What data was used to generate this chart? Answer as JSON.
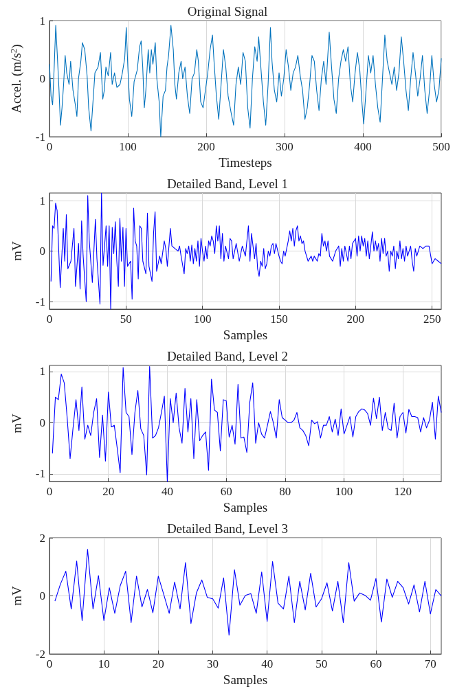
{
  "chart_data": [
    {
      "type": "line",
      "title": "Original Signal",
      "xlabel": "Timesteps",
      "ylabel": "Accel. (m/s$^{2}$)",
      "xlim": [
        0,
        500
      ],
      "xticks": [
        0,
        100,
        200,
        300,
        400,
        500
      ],
      "ylim": [
        -1,
        1
      ],
      "yticks": [
        -1,
        0,
        1
      ],
      "grid": true,
      "marker": "none",
      "series": [
        {
          "color": "#0072bd",
          "x": [
            0,
            2,
            4,
            6,
            8,
            10,
            12,
            14,
            16,
            18,
            20,
            22,
            25,
            27,
            30,
            33,
            35,
            37,
            40,
            42,
            45,
            48,
            50,
            53,
            55,
            58,
            62,
            65,
            68,
            70,
            72,
            75,
            78,
            80,
            83,
            86,
            90,
            93,
            96,
            98,
            100,
            102,
            105,
            108,
            112,
            115,
            117,
            119,
            121,
            123,
            126,
            128,
            130,
            132,
            135,
            137,
            140,
            142,
            145,
            148,
            150,
            152,
            155,
            158,
            160,
            162,
            165,
            168,
            170,
            173,
            176,
            179,
            182,
            185,
            188,
            190,
            193,
            196,
            199,
            202,
            205,
            208,
            210,
            213,
            216,
            219,
            222,
            225,
            228,
            232,
            235,
            238,
            241,
            244,
            247,
            250,
            253,
            256,
            259,
            262,
            265,
            267,
            270,
            273,
            276,
            279,
            282,
            284,
            287,
            290,
            293,
            296,
            299,
            302,
            305,
            308,
            311,
            314,
            317,
            320,
            323,
            326,
            329,
            332,
            335,
            338,
            341,
            344,
            347,
            350,
            353,
            357,
            360,
            363,
            366,
            369,
            372,
            375,
            378,
            381,
            384,
            387,
            390,
            393,
            396,
            399,
            401,
            404,
            407,
            410,
            413,
            416,
            419,
            422,
            425,
            428,
            431,
            434,
            437,
            440,
            443,
            446,
            449,
            452,
            455,
            458,
            461,
            464,
            467,
            470,
            473,
            476,
            479,
            482,
            485,
            488,
            491,
            494,
            497,
            500
          ],
          "values": [
            0.25,
            -0.3,
            -0.45,
            0.2,
            0.92,
            0.4,
            -0.15,
            -0.8,
            -0.5,
            -0.1,
            0.4,
            0.1,
            -0.1,
            0.3,
            -0.2,
            -0.45,
            -0.65,
            0.0,
            0.3,
            0.62,
            0.5,
            0.05,
            -0.5,
            -0.9,
            -0.5,
            0.1,
            0.2,
            0.45,
            -0.35,
            -0.2,
            0.2,
            0.05,
            0.45,
            -0.1,
            0.1,
            -0.15,
            -0.1,
            0.1,
            0.35,
            0.88,
            0.2,
            -0.35,
            -0.65,
            -0.05,
            0.15,
            0.55,
            0.65,
            0.2,
            -0.5,
            -0.2,
            0.5,
            0.1,
            0.5,
            0.25,
            0.62,
            0.0,
            -0.4,
            -1.0,
            -0.3,
            -0.2,
            0.2,
            0.4,
            0.92,
            0.5,
            -0.1,
            -0.35,
            0.1,
            0.3,
            0.0,
            0.2,
            -0.3,
            -0.6,
            0.0,
            0.1,
            0.5,
            0.3,
            -0.4,
            -0.5,
            -0.2,
            0.1,
            0.5,
            0.75,
            0.3,
            -0.3,
            -0.7,
            -0.1,
            0.5,
            0.2,
            -0.3,
            -0.6,
            -0.8,
            -0.1,
            0.2,
            -0.1,
            0.45,
            0.3,
            -0.5,
            -0.85,
            0.0,
            0.55,
            0.3,
            0.72,
            0.15,
            -0.4,
            -0.8,
            -0.1,
            0.88,
            0.3,
            -0.2,
            -0.4,
            0.1,
            -0.3,
            0.0,
            0.5,
            0.2,
            -0.2,
            0.1,
            0.2,
            0.4,
            0.05,
            -0.2,
            -0.7,
            -0.5,
            -0.1,
            0.4,
            0.3,
            -0.2,
            -0.55,
            0.0,
            0.3,
            -0.1,
            0.8,
            0.2,
            -0.35,
            -0.6,
            0.0,
            0.3,
            0.5,
            0.3,
            0.55,
            -0.1,
            -0.4,
            0.1,
            0.45,
            0.15,
            -0.45,
            -0.78,
            -0.2,
            0.4,
            0.1,
            0.4,
            -0.1,
            -0.5,
            -0.75,
            0.0,
            0.75,
            0.3,
            0.1,
            -0.1,
            0.2,
            -0.2,
            0.1,
            0.72,
            0.3,
            -0.2,
            -0.55,
            0.0,
            0.45,
            0.1,
            -0.3,
            0.0,
            0.4,
            -0.2,
            -0.6,
            -0.2,
            0.4,
            -0.1,
            -0.4,
            -0.2,
            0.35
          ]
        }
      ]
    },
    {
      "type": "line",
      "title": "Detailed Band, Level 1",
      "xlabel": "Samples",
      "ylabel": "mV",
      "xlim": [
        0,
        256
      ],
      "xticks": [
        0,
        50,
        100,
        150,
        200,
        250
      ],
      "ylim": [
        -1.15,
        1.15
      ],
      "yticks": [
        -1,
        0,
        1
      ],
      "grid": true,
      "marker": "none",
      "series": [
        {
          "color": "#0000ff",
          "x": [
            1,
            2,
            3,
            4,
            5,
            7,
            9,
            10,
            11,
            12,
            14,
            16,
            17,
            19,
            20,
            21,
            22,
            24,
            25,
            26,
            28,
            30,
            31,
            33,
            34,
            35,
            37,
            38,
            39,
            40,
            41,
            42,
            43,
            44,
            45,
            46,
            47,
            48,
            49,
            50,
            51,
            53,
            54,
            55,
            56,
            57,
            58,
            59,
            60,
            61,
            63,
            64,
            65,
            67,
            68,
            69,
            70,
            72,
            73,
            75,
            76,
            77,
            79,
            80,
            82,
            84,
            85,
            86,
            88,
            89,
            90,
            91,
            92,
            93,
            94,
            95,
            96,
            97,
            98,
            99,
            100,
            101,
            102,
            103,
            104,
            105,
            106,
            107,
            108,
            109,
            110,
            111,
            112,
            113,
            114,
            115,
            117,
            118,
            119,
            120,
            122,
            124,
            126,
            128,
            130,
            131,
            132,
            134,
            135,
            136,
            137,
            138,
            139,
            140,
            141,
            142,
            143,
            144,
            145,
            146,
            147,
            148,
            150,
            151,
            152,
            153,
            154,
            156,
            157,
            158,
            159,
            160,
            161,
            162,
            163,
            164,
            165,
            166,
            167,
            168,
            169,
            171,
            172,
            173,
            175,
            176,
            177,
            178,
            179,
            180,
            181,
            182,
            183,
            185,
            187,
            189,
            190,
            191,
            192,
            193,
            195,
            196,
            197,
            198,
            200,
            201,
            202,
            203,
            204,
            205,
            206,
            207,
            208,
            209,
            211,
            212,
            213,
            214,
            215,
            216,
            217,
            218,
            219,
            220,
            221,
            222,
            223,
            224,
            225,
            226,
            227,
            228,
            229,
            230,
            231,
            232,
            233,
            234,
            235,
            236,
            237,
            238,
            239,
            240,
            242,
            244,
            246,
            248,
            250,
            252,
            254,
            256
          ],
          "values": [
            -0.6,
            0.5,
            0.45,
            0.95,
            0.8,
            -0.72,
            0.45,
            -0.2,
            0.72,
            -0.35,
            -0.2,
            0.45,
            -0.7,
            0.15,
            -0.75,
            0.6,
            -0.1,
            -1.0,
            1.1,
            0.2,
            -0.62,
            0.63,
            -0.15,
            -1.05,
            1.15,
            -0.28,
            0.5,
            -0.3,
            0.5,
            -1.15,
            0.47,
            -0.05,
            0.58,
            -0.2,
            -0.7,
            0.65,
            -0.2,
            0.47,
            -0.7,
            0.45,
            -0.3,
            -0.2,
            -0.95,
            0.85,
            0.2,
            0.1,
            -0.55,
            0.5,
            0.45,
            -0.2,
            -0.45,
            0.75,
            -0.3,
            -0.6,
            0.35,
            0.78,
            -0.4,
            -0.1,
            -0.25,
            0.2,
            0.05,
            -0.3,
            0.45,
            0.1,
            0.05,
            0.0,
            0.1,
            -0.1,
            -0.45,
            0.05,
            -0.05,
            0.1,
            -0.2,
            0.12,
            -0.25,
            0.05,
            -0.2,
            0.2,
            -0.3,
            0.25,
            0.0,
            -0.2,
            0.1,
            -0.15,
            0.2,
            0.1,
            0.3,
            0.2,
            -0.05,
            0.5,
            0.2,
            0.5,
            -0.15,
            0.35,
            -0.2,
            0.1,
            -0.15,
            0.25,
            0.2,
            -0.15,
            0.15,
            -0.2,
            0.1,
            -0.1,
            0.5,
            -0.2,
            0.35,
            -0.15,
            0.15,
            -0.35,
            -0.5,
            -0.2,
            -0.3,
            0.05,
            -0.35,
            -0.25,
            0.0,
            -0.1,
            0.1,
            0.15,
            -0.05,
            0.15,
            -0.1,
            -0.2,
            -0.25,
            0.0,
            -0.1,
            0.2,
            0.4,
            0.2,
            0.45,
            0.1,
            0.4,
            0.5,
            0.2,
            0.3,
            0.15,
            0.2,
            0.0,
            -0.1,
            -0.2,
            -0.1,
            -0.2,
            -0.1,
            -0.2,
            -0.05,
            -0.1,
            0.35,
            0.1,
            0.2,
            0.0,
            0.2,
            -0.1,
            -0.2,
            0.0,
            0.1,
            -0.3,
            0.05,
            -0.2,
            0.1,
            -0.2,
            0.1,
            -0.15,
            0.15,
            0.25,
            -0.1,
            0.3,
            0.0,
            0.3,
            0.1,
            0.25,
            -0.1,
            0.2,
            -0.15,
            0.38,
            0.0,
            0.2,
            0.0,
            0.15,
            -0.2,
            0.25,
            -0.05,
            0.25,
            -0.1,
            0.0,
            -0.4,
            0.0,
            -0.1,
            0.1,
            -0.35,
            0.0,
            -0.15,
            0.2,
            -0.15,
            0.05,
            -0.2,
            0.1,
            -0.1,
            0.0,
            0.1,
            -0.2,
            -0.4,
            0.05,
            -0.1,
            0.1,
            0.05,
            0.1,
            0.1,
            -0.25,
            -0.15,
            -0.2,
            -0.25
          ]
        }
      ]
    },
    {
      "type": "line",
      "title": "Detailed Band, Level 2",
      "xlabel": "Samples",
      "ylabel": "mV",
      "xlim": [
        0,
        133
      ],
      "xticks": [
        0,
        20,
        40,
        60,
        80,
        100,
        120
      ],
      "ylim": [
        -1.15,
        1.12
      ],
      "yticks": [
        -1,
        0,
        1
      ],
      "grid": true,
      "marker": "none",
      "series": [
        {
          "color": "#0000ff",
          "x": [
            1,
            2,
            3,
            4,
            5,
            6,
            7,
            8,
            9,
            10,
            11,
            12,
            13,
            14,
            15,
            16,
            17,
            18,
            19,
            20,
            21,
            22,
            23,
            24,
            25,
            26,
            27,
            28,
            29,
            30,
            31,
            32,
            33,
            34,
            35,
            36,
            37,
            38,
            39,
            40,
            41,
            42,
            43,
            44,
            45,
            46,
            47,
            48,
            49,
            50,
            51,
            52,
            53,
            54,
            55,
            56,
            57,
            58,
            59,
            60,
            61,
            62,
            63,
            64,
            65,
            66,
            67,
            68,
            69,
            70,
            71,
            72,
            73,
            74,
            75,
            76,
            77,
            78,
            79,
            80,
            81,
            82,
            83,
            84,
            85,
            86,
            87,
            88,
            89,
            90,
            91,
            92,
            93,
            94,
            95,
            96,
            97,
            98,
            99,
            100,
            101,
            102,
            103,
            104,
            105,
            106,
            107,
            108,
            109,
            110,
            111,
            112,
            113,
            114,
            115,
            116,
            117,
            118,
            119,
            120,
            121,
            122,
            123,
            124,
            125,
            126,
            127,
            128,
            129,
            130,
            131,
            132,
            133
          ],
          "values": [
            -0.6,
            0.5,
            0.45,
            0.95,
            0.78,
            0.1,
            -0.7,
            -0.1,
            0.45,
            -0.15,
            0.7,
            -0.32,
            -0.05,
            -0.25,
            0.2,
            0.47,
            -0.68,
            0.15,
            -0.75,
            0.6,
            -0.08,
            -0.05,
            -0.5,
            -0.98,
            1.08,
            0.2,
            0.12,
            -0.62,
            0.2,
            0.63,
            -0.12,
            -0.25,
            -1.02,
            1.1,
            -0.3,
            -0.25,
            -0.1,
            0.2,
            0.52,
            -1.15,
            0.47,
            0.0,
            0.58,
            -0.1,
            -0.4,
            0.67,
            -0.18,
            0.47,
            -0.7,
            0.45,
            -0.35,
            -0.25,
            -0.18,
            -0.93,
            0.85,
            0.25,
            0.2,
            -0.55,
            0.45,
            0.43,
            -0.28,
            -0.05,
            -0.42,
            0.75,
            -0.3,
            -0.28,
            -0.58,
            0.4,
            0.78,
            -0.4,
            0.0,
            -0.22,
            -0.3,
            -0.05,
            0.22,
            0.0,
            -0.3,
            0.45,
            0.1,
            0.05,
            0.0,
            0.0,
            0.05,
            0.2,
            -0.1,
            -0.15,
            -0.25,
            -0.45,
            0.05,
            -0.02,
            0.02,
            -0.3,
            -0.05,
            -0.05,
            0.12,
            -0.18,
            0.07,
            -0.25,
            0.27,
            -0.22,
            -0.05,
            0.12,
            -0.28,
            0.12,
            0.22,
            0.27,
            0.25,
            0.18,
            -0.05,
            0.48,
            0.08,
            0.5,
            -0.15,
            0.2,
            -0.12,
            -0.15,
            0.38,
            -0.3,
            0.12,
            0.2,
            -0.2,
            0.26,
            0.12,
            0.12,
            0.1,
            -0.18,
            0.1,
            -0.1,
            0.05,
            0.4,
            -0.32,
            0.52,
            0.2
          ]
        }
      ]
    },
    {
      "type": "line",
      "title": "Detailed Band, Level 3",
      "xlabel": "Samples",
      "ylabel": "mV",
      "xlim": [
        0,
        72
      ],
      "xticks": [
        0,
        10,
        20,
        30,
        40,
        50,
        60,
        70
      ],
      "ylim": [
        -2,
        2
      ],
      "yticks": [
        -2,
        0,
        2
      ],
      "grid": true,
      "marker": "none",
      "series": [
        {
          "color": "#0000ff",
          "x": [
            1,
            2,
            3,
            4,
            5,
            6,
            7,
            8,
            9,
            10,
            11,
            12,
            13,
            14,
            15,
            16,
            17,
            18,
            19,
            20,
            21,
            22,
            23,
            24,
            25,
            26,
            27,
            28,
            29,
            30,
            31,
            32,
            33,
            34,
            35,
            36,
            37,
            38,
            39,
            40,
            41,
            42,
            43,
            44,
            45,
            46,
            47,
            48,
            49,
            50,
            51,
            52,
            53,
            54,
            55,
            56,
            57,
            58,
            59,
            60,
            61,
            62,
            63,
            64,
            65,
            66,
            67,
            68,
            69,
            70,
            71,
            72
          ],
          "values": [
            -0.18,
            0.4,
            0.85,
            -0.45,
            1.2,
            -0.85,
            1.6,
            -0.45,
            0.7,
            -0.85,
            0.28,
            -0.6,
            0.35,
            0.85,
            -0.92,
            0.68,
            -0.38,
            0.22,
            -0.58,
            0.68,
            0.05,
            -0.6,
            0.48,
            -0.45,
            1.15,
            -0.95,
            0.1,
            0.55,
            -0.05,
            -0.1,
            -0.42,
            0.62,
            -1.35,
            0.9,
            -0.32,
            0.02,
            0.08,
            -0.6,
            0.82,
            -0.88,
            1.18,
            -0.25,
            -0.45,
            0.68,
            -0.92,
            0.5,
            -0.48,
            0.78,
            -0.38,
            -0.1,
            0.45,
            -0.52,
            0.5,
            -0.92,
            1.15,
            -0.18,
            0.1,
            0.02,
            -0.15,
            0.6,
            -0.9,
            0.58,
            -0.05,
            0.5,
            0.28,
            -0.28,
            0.38,
            -0.55,
            0.5,
            -0.62,
            0.22,
            0.0
          ]
        }
      ]
    }
  ]
}
